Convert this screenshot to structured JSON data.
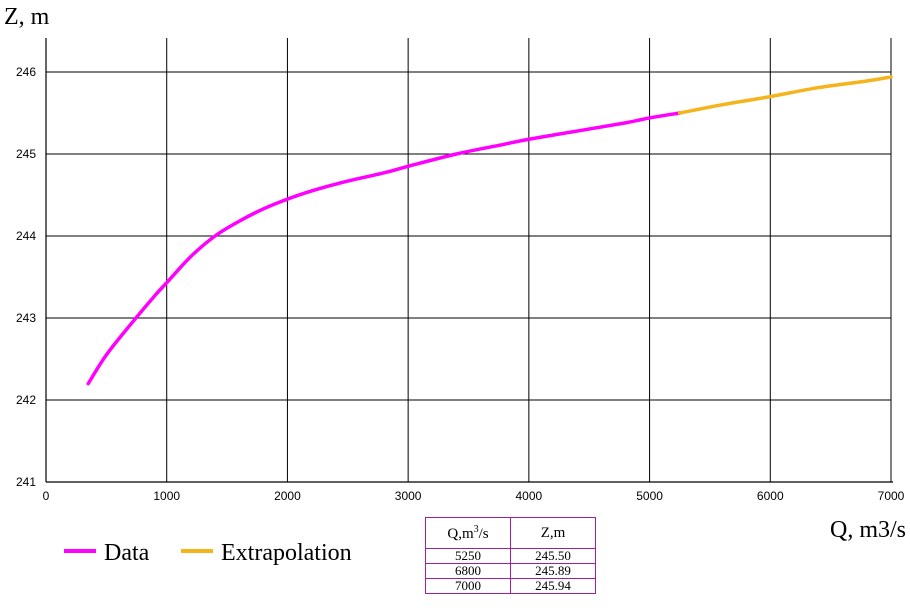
{
  "chart_data": {
    "type": "line",
    "ylabel": "Z, m",
    "xlabel": "Q, m3/s",
    "xlim": [
      0,
      7000
    ],
    "ylim": [
      241,
      246.5
    ],
    "x_ticks": [
      "0",
      "1000",
      "2000",
      "3000",
      "4000",
      "5000",
      "6000",
      "7000"
    ],
    "y_ticks": [
      "241",
      "242",
      "243",
      "244",
      "245",
      "246"
    ],
    "grid": true,
    "legend_position": "bottom-left",
    "series": [
      {
        "name": "Data",
        "color": "#ff00ff",
        "points": [
          [
            350,
            242.2
          ],
          [
            500,
            242.55
          ],
          [
            700,
            242.92
          ],
          [
            900,
            243.27
          ],
          [
            1000,
            243.43
          ],
          [
            1200,
            243.75
          ],
          [
            1400,
            244.0
          ],
          [
            1600,
            244.18
          ],
          [
            1800,
            244.33
          ],
          [
            2000,
            244.45
          ],
          [
            2200,
            244.55
          ],
          [
            2500,
            244.67
          ],
          [
            2800,
            244.77
          ],
          [
            3000,
            244.85
          ],
          [
            3400,
            245.0
          ],
          [
            3800,
            245.12
          ],
          [
            4000,
            245.18
          ],
          [
            4400,
            245.28
          ],
          [
            4800,
            245.38
          ],
          [
            5000,
            245.44
          ],
          [
            5250,
            245.5
          ]
        ]
      },
      {
        "name": "Extrapolation",
        "color": "#f5b31c",
        "points": [
          [
            5250,
            245.5
          ],
          [
            5600,
            245.6
          ],
          [
            6000,
            245.7
          ],
          [
            6400,
            245.81
          ],
          [
            6800,
            245.89
          ],
          [
            7000,
            245.94
          ]
        ]
      }
    ]
  },
  "table": {
    "header_q_base": "Q,m",
    "header_q_sup": "3",
    "header_q_tail": "/s",
    "header_z": "Z,m",
    "rows": [
      {
        "q": "5250",
        "z": "245.50"
      },
      {
        "q": "6800",
        "z": "245.89"
      },
      {
        "q": "7000",
        "z": "245.94"
      }
    ]
  }
}
